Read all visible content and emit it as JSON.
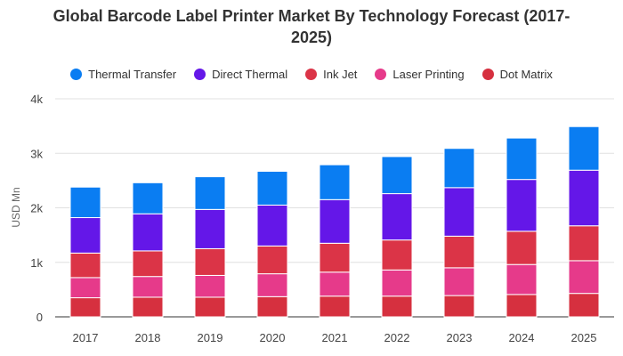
{
  "chart_data": {
    "type": "bar",
    "stacked": true,
    "title_lines": [
      "Global Barcode Label Printer Market By Technology Forecast (2017-",
      "2025)"
    ],
    "xlabel": "",
    "ylabel": "USD Mn",
    "categories": [
      "2017",
      "2018",
      "2019",
      "2020",
      "2021",
      "2022",
      "2023",
      "2024",
      "2025"
    ],
    "y_ticks": [
      0,
      1000,
      2000,
      3000,
      4000
    ],
    "y_tick_labels": [
      "0",
      "1k",
      "2k",
      "3k",
      "4k"
    ],
    "ylim": [
      0,
      4000
    ],
    "grid": true,
    "legend_position": "top",
    "series": [
      {
        "name": "Thermal Transfer",
        "color": "#0A7DF2",
        "values": [
          560,
          570,
          600,
          620,
          640,
          680,
          720,
          760,
          800
        ]
      },
      {
        "name": "Direct Thermal",
        "color": "#6417E8",
        "values": [
          650,
          680,
          720,
          750,
          800,
          850,
          890,
          950,
          1020
        ]
      },
      {
        "name": "Ink Jet",
        "color": "#DB3447",
        "values": [
          450,
          470,
          490,
          510,
          530,
          550,
          580,
          610,
          640
        ]
      },
      {
        "name": "Laser Printing",
        "color": "#E63A8A",
        "values": [
          370,
          380,
          400,
          420,
          440,
          480,
          510,
          550,
          600
        ]
      },
      {
        "name": "Dot Matrix",
        "color": "#D6303F",
        "values": [
          350,
          360,
          360,
          370,
          380,
          380,
          390,
          410,
          430
        ]
      }
    ]
  }
}
